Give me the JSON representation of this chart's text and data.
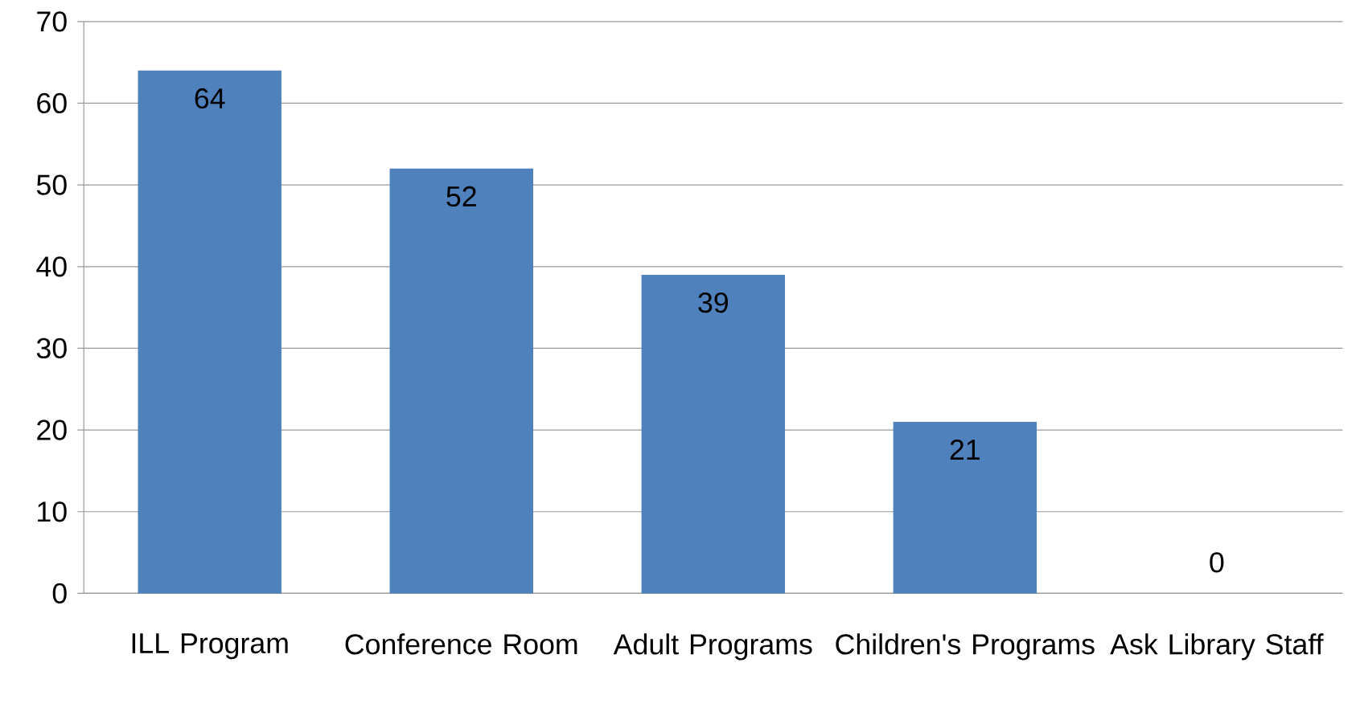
{
  "chart_data": {
    "type": "bar",
    "categories": [
      "ILL Program",
      "Conference Room",
      "Adult Programs",
      "Children's Programs",
      "Ask Library Staff"
    ],
    "values": [
      64,
      52,
      39,
      21,
      0
    ],
    "value_labels": [
      "64",
      "52",
      "39",
      "21",
      "0"
    ],
    "color": "#4f81bd",
    "ylim": [
      0,
      70
    ],
    "yticks": [
      0,
      10,
      20,
      30,
      40,
      50,
      60,
      70
    ],
    "grid": "y"
  }
}
